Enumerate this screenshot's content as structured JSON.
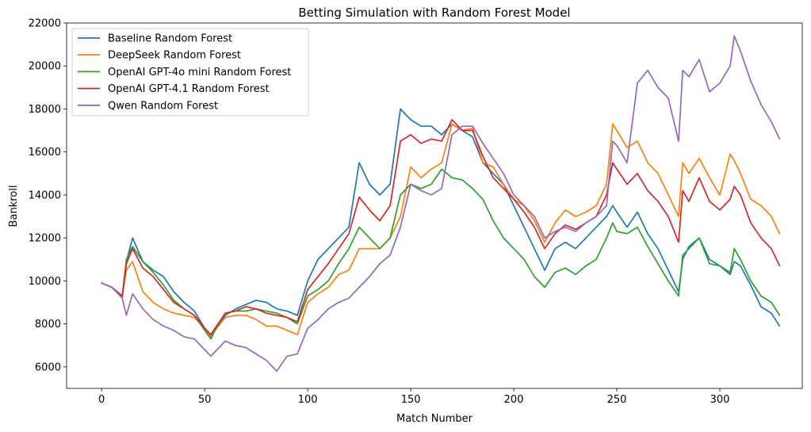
{
  "chart_data": {
    "type": "line",
    "title": "Betting Simulation with Random Forest Model",
    "xlabel": "Match Number",
    "ylabel": "Bankroll",
    "xlim": [
      -17,
      340
    ],
    "ylim": [
      5000,
      22000
    ],
    "xticks": [
      0,
      50,
      100,
      150,
      200,
      250,
      300
    ],
    "yticks": [
      6000,
      8000,
      10000,
      12000,
      14000,
      16000,
      18000,
      20000,
      22000
    ],
    "legend_position": "upper-left",
    "grid": false,
    "x": [
      0,
      5,
      10,
      12,
      15,
      20,
      25,
      30,
      35,
      40,
      45,
      50,
      53,
      55,
      60,
      65,
      70,
      75,
      80,
      85,
      90,
      95,
      100,
      105,
      110,
      115,
      120,
      125,
      130,
      135,
      140,
      145,
      150,
      155,
      160,
      165,
      170,
      175,
      180,
      185,
      190,
      195,
      200,
      205,
      210,
      215,
      220,
      225,
      230,
      235,
      240,
      245,
      248,
      250,
      255,
      260,
      265,
      270,
      275,
      280,
      282,
      285,
      290,
      295,
      300,
      305,
      307,
      310,
      315,
      320,
      325,
      329
    ],
    "series": [
      {
        "name": "Baseline Random Forest",
        "color": "#1f77b4",
        "values": [
          9900,
          9700,
          9200,
          10900,
          12000,
          10900,
          10500,
          10200,
          9500,
          9000,
          8600,
          7800,
          7500,
          7700,
          8400,
          8700,
          8900,
          9100,
          9000,
          8700,
          8600,
          8400,
          10000,
          11000,
          11500,
          12000,
          12500,
          15500,
          14500,
          14000,
          14500,
          18000,
          17500,
          17200,
          17200,
          16800,
          17300,
          17000,
          16700,
          15500,
          15000,
          14500,
          13500,
          12500,
          11500,
          10500,
          11500,
          11800,
          11500,
          12000,
          12500,
          13000,
          13500,
          13200,
          12500,
          13200,
          12200,
          11500,
          10500,
          9500,
          11000,
          11600,
          12000,
          11000,
          10700,
          10300,
          10900,
          10700,
          9800,
          8800,
          8500,
          7900
        ]
      },
      {
        "name": "DeepSeek Random Forest",
        "color": "#ff7f0e",
        "values": [
          9900,
          9700,
          9300,
          10500,
          10900,
          9500,
          9000,
          8700,
          8500,
          8400,
          8300,
          7800,
          7400,
          7700,
          8300,
          8400,
          8400,
          8200,
          7900,
          7900,
          7700,
          7500,
          9000,
          9400,
          9700,
          10300,
          10500,
          11500,
          11500,
          11500,
          12000,
          13000,
          15300,
          14800,
          15200,
          15500,
          17300,
          17000,
          17100,
          15500,
          15300,
          14500,
          13800,
          13500,
          12800,
          11800,
          12700,
          13300,
          13000,
          13200,
          13500,
          14500,
          17300,
          17000,
          16200,
          16500,
          15500,
          15000,
          14000,
          13000,
          15500,
          15000,
          15700,
          14800,
          14000,
          15900,
          15600,
          15000,
          13800,
          13500,
          13000,
          12200
        ]
      },
      {
        "name": "OpenAI GPT-4o mini Random Forest",
        "color": "#2ca02c",
        "values": [
          9900,
          9700,
          9300,
          11000,
          11600,
          10900,
          10400,
          9800,
          9100,
          8700,
          8400,
          7700,
          7300,
          7700,
          8500,
          8600,
          8600,
          8700,
          8600,
          8500,
          8300,
          8000,
          9300,
          9600,
          10000,
          10800,
          11500,
          12500,
          12000,
          11500,
          12000,
          14000,
          14500,
          14300,
          14500,
          15200,
          14800,
          14700,
          14300,
          13800,
          12800,
          12000,
          11500,
          11000,
          10200,
          9700,
          10400,
          10600,
          10300,
          10700,
          11000,
          12000,
          12700,
          12300,
          12200,
          12500,
          11600,
          10800,
          10000,
          9300,
          11200,
          11500,
          12000,
          10800,
          10700,
          10400,
          11500,
          11000,
          10000,
          9300,
          9000,
          8400
        ]
      },
      {
        "name": "OpenAI GPT-4.1 Random Forest",
        "color": "#d62728",
        "values": [
          9900,
          9700,
          9300,
          10800,
          11500,
          10600,
          10200,
          9600,
          9000,
          8700,
          8400,
          7800,
          7500,
          7800,
          8500,
          8600,
          8800,
          8700,
          8500,
          8400,
          8300,
          8100,
          9600,
          10200,
          10800,
          11500,
          12200,
          13900,
          13300,
          12800,
          13500,
          16500,
          16800,
          16400,
          16600,
          16500,
          17500,
          17000,
          17000,
          15800,
          14800,
          14300,
          13800,
          13200,
          12500,
          11500,
          12200,
          12600,
          12400,
          12700,
          13000,
          14000,
          15500,
          15200,
          14500,
          15000,
          14200,
          13700,
          13000,
          11800,
          14200,
          13700,
          14800,
          13700,
          13300,
          13800,
          14400,
          14000,
          12700,
          12000,
          11500,
          10700
        ]
      },
      {
        "name": "Qwen Random Forest",
        "color": "#9467bd",
        "values": [
          9900,
          9700,
          9200,
          8400,
          9400,
          8700,
          8200,
          7900,
          7700,
          7400,
          7300,
          6800,
          6500,
          6700,
          7200,
          7000,
          6900,
          6600,
          6300,
          5800,
          6500,
          6600,
          7800,
          8200,
          8700,
          9000,
          9200,
          9700,
          10200,
          10800,
          11200,
          12500,
          14500,
          14200,
          14000,
          14300,
          16800,
          17200,
          17200,
          16400,
          15700,
          15000,
          14000,
          13500,
          13000,
          12000,
          12300,
          12500,
          12300,
          12700,
          13000,
          13500,
          16500,
          16300,
          15500,
          19200,
          19800,
          19000,
          18500,
          16500,
          19800,
          19500,
          20300,
          18800,
          19200,
          20000,
          21400,
          20700,
          19300,
          18200,
          17400,
          16600
        ]
      }
    ]
  }
}
